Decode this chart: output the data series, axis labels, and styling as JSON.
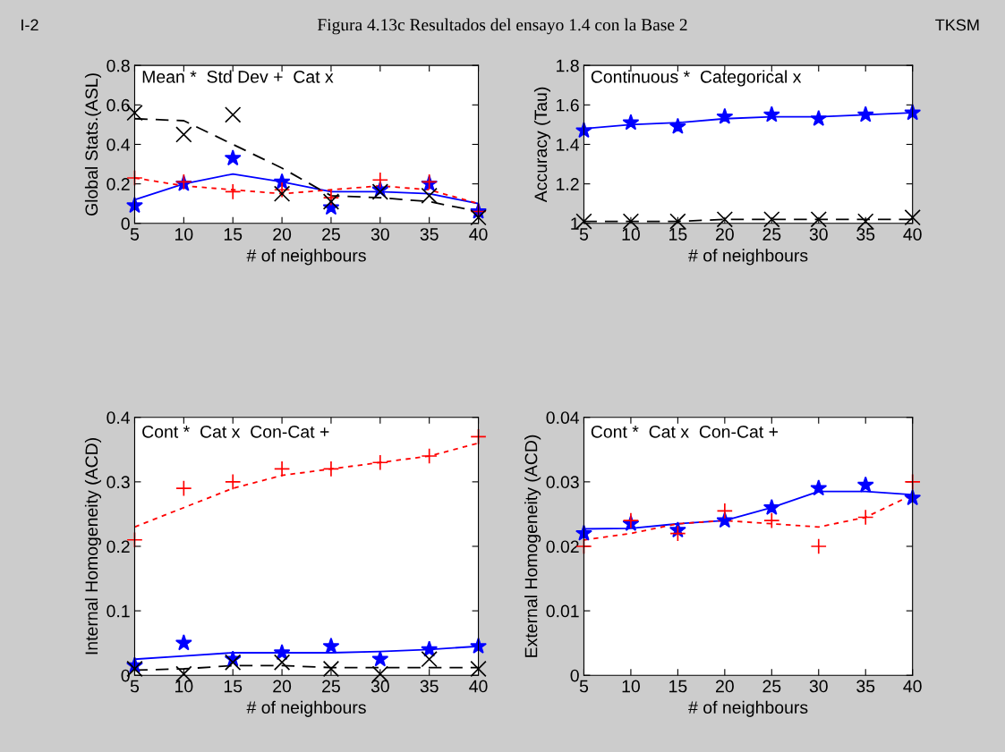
{
  "chart_data": [
    {
      "type": "scatter",
      "title": "Figura 4.13c Resultados del ensayo 1.4 con la Base 2",
      "annotations": [
        "I-2",
        "TKSM",
        "Mean *  Std Dev +  Cat x"
      ],
      "xlabel": "# of neighbours",
      "ylabel": "Global Stats.(ASL)",
      "x": [
        5,
        10,
        15,
        20,
        25,
        30,
        35,
        40
      ],
      "xlim": [
        5,
        40
      ],
      "xticks": [
        5,
        10,
        15,
        20,
        25,
        30,
        35,
        40
      ],
      "ylim": [
        0,
        0.8
      ],
      "yticks": [
        0,
        0.2,
        0.4,
        0.6,
        0.8
      ],
      "grid": false,
      "legend": false,
      "series": [
        {
          "type": "line",
          "color": "#0000ff",
          "line_style": "solid",
          "marker": "none",
          "values": [
            0.12,
            0.2,
            0.25,
            0.21,
            0.16,
            0.16,
            0.15,
            0.1
          ]
        },
        {
          "type": "line",
          "color": "#ff0000",
          "line_style": "dotted",
          "marker": "none",
          "values": [
            0.23,
            0.19,
            0.17,
            0.15,
            0.17,
            0.19,
            0.17,
            0.1
          ]
        },
        {
          "type": "line",
          "color": "#000000",
          "line_style": "dashed",
          "marker": "none",
          "values": [
            0.53,
            0.52,
            0.4,
            0.28,
            0.14,
            0.13,
            0.11,
            0.06
          ]
        },
        {
          "type": "scatter",
          "color": "#0000ff",
          "marker": "star",
          "values": [
            0.09,
            0.2,
            0.33,
            0.21,
            0.08,
            0.17,
            0.2,
            0.06
          ]
        },
        {
          "type": "scatter",
          "color": "#ff0000",
          "marker": "plus",
          "values": [
            0.23,
            0.21,
            0.16,
            0.17,
            0.13,
            0.22,
            0.21,
            0.06
          ]
        },
        {
          "type": "scatter",
          "color": "#000000",
          "marker": "cross",
          "values": [
            0.56,
            0.45,
            0.55,
            0.15,
            0.11,
            0.16,
            0.14,
            0.03
          ]
        }
      ]
    },
    {
      "type": "scatter",
      "annotations": [
        "Continuous *  Categorical x"
      ],
      "xlabel": "# of neighbours",
      "ylabel": "Accuracy (Tau)",
      "x": [
        5,
        10,
        15,
        20,
        25,
        30,
        35,
        40
      ],
      "xlim": [
        5,
        40
      ],
      "xticks": [
        5,
        10,
        15,
        20,
        25,
        30,
        35,
        40
      ],
      "ylim": [
        1,
        1.8
      ],
      "yticks": [
        1,
        1.2,
        1.4,
        1.6,
        1.8
      ],
      "grid": false,
      "legend": false,
      "series": [
        {
          "type": "line",
          "color": "#0000ff",
          "line_style": "solid",
          "marker": "none",
          "values": [
            1.48,
            1.5,
            1.51,
            1.53,
            1.54,
            1.54,
            1.55,
            1.56
          ]
        },
        {
          "type": "line",
          "color": "#000000",
          "line_style": "dashed",
          "marker": "none",
          "values": [
            1.01,
            1.01,
            1.01,
            1.02,
            1.02,
            1.02,
            1.02,
            1.02
          ]
        },
        {
          "type": "scatter",
          "color": "#0000ff",
          "marker": "star",
          "values": [
            1.47,
            1.51,
            1.49,
            1.54,
            1.55,
            1.53,
            1.55,
            1.56
          ]
        },
        {
          "type": "scatter",
          "color": "#000000",
          "marker": "cross",
          "values": [
            1.01,
            1.01,
            1.01,
            1.02,
            1.02,
            1.02,
            1.01,
            1.03
          ]
        }
      ]
    },
    {
      "type": "scatter",
      "annotations": [
        "Cont *  Cat x  Con-Cat +"
      ],
      "xlabel": "# of neighbours",
      "ylabel": "Internal Homogeneity (ACD)",
      "x": [
        5,
        10,
        15,
        20,
        25,
        30,
        35,
        40
      ],
      "xlim": [
        5,
        40
      ],
      "xticks": [
        5,
        10,
        15,
        20,
        25,
        30,
        35,
        40
      ],
      "ylim": [
        0,
        0.4
      ],
      "yticks": [
        0,
        0.1,
        0.2,
        0.3,
        0.4
      ],
      "grid": false,
      "legend": false,
      "series": [
        {
          "type": "line",
          "color": "#ff0000",
          "line_style": "dotted",
          "marker": "none",
          "values": [
            0.23,
            0.26,
            0.29,
            0.31,
            0.32,
            0.33,
            0.34,
            0.36
          ]
        },
        {
          "type": "line",
          "color": "#0000ff",
          "line_style": "solid",
          "marker": "none",
          "values": [
            0.025,
            0.03,
            0.035,
            0.035,
            0.035,
            0.037,
            0.04,
            0.045
          ]
        },
        {
          "type": "line",
          "color": "#000000",
          "line_style": "dashed",
          "marker": "none",
          "values": [
            0.008,
            0.01,
            0.015,
            0.015,
            0.012,
            0.012,
            0.012,
            0.012
          ]
        },
        {
          "type": "scatter",
          "color": "#ff0000",
          "marker": "plus",
          "values": [
            0.21,
            0.29,
            0.3,
            0.32,
            0.32,
            0.33,
            0.34,
            0.37
          ]
        },
        {
          "type": "scatter",
          "color": "#0000ff",
          "marker": "star",
          "values": [
            0.015,
            0.05,
            0.025,
            0.035,
            0.045,
            0.025,
            0.04,
            0.045
          ]
        },
        {
          "type": "scatter",
          "color": "#000000",
          "marker": "cross",
          "values": [
            0.01,
            0.002,
            0.02,
            0.02,
            0.01,
            0.002,
            0.025,
            0.01
          ]
        }
      ]
    },
    {
      "type": "scatter",
      "annotations": [
        "Cont *  Cat x  Con-Cat +"
      ],
      "xlabel": "# of neighbours",
      "ylabel": "External Homogeneity (ACD)",
      "x": [
        5,
        10,
        15,
        20,
        25,
        30,
        35,
        40
      ],
      "xlim": [
        5,
        40
      ],
      "xticks": [
        5,
        10,
        15,
        20,
        25,
        30,
        35,
        40
      ],
      "ylim": [
        0,
        0.04
      ],
      "yticks": [
        0,
        0.01,
        0.02,
        0.03,
        0.04
      ],
      "grid": false,
      "legend": false,
      "series": [
        {
          "type": "line",
          "color": "#0000ff",
          "line_style": "solid",
          "marker": "none",
          "values": [
            0.0227,
            0.0228,
            0.0235,
            0.024,
            0.026,
            0.0285,
            0.0285,
            0.028
          ]
        },
        {
          "type": "line",
          "color": "#ff0000",
          "line_style": "dotted",
          "marker": "none",
          "values": [
            0.021,
            0.022,
            0.0235,
            0.024,
            0.0235,
            0.023,
            0.0245,
            0.028
          ]
        },
        {
          "type": "scatter",
          "color": "#0000ff",
          "marker": "star",
          "values": [
            0.022,
            0.0235,
            0.0225,
            0.024,
            0.026,
            0.029,
            0.0295,
            0.0275
          ]
        },
        {
          "type": "scatter",
          "color": "#ff0000",
          "marker": "plus",
          "values": [
            0.02,
            0.024,
            0.022,
            0.0255,
            0.024,
            0.02,
            0.0245,
            0.03
          ]
        }
      ]
    }
  ]
}
